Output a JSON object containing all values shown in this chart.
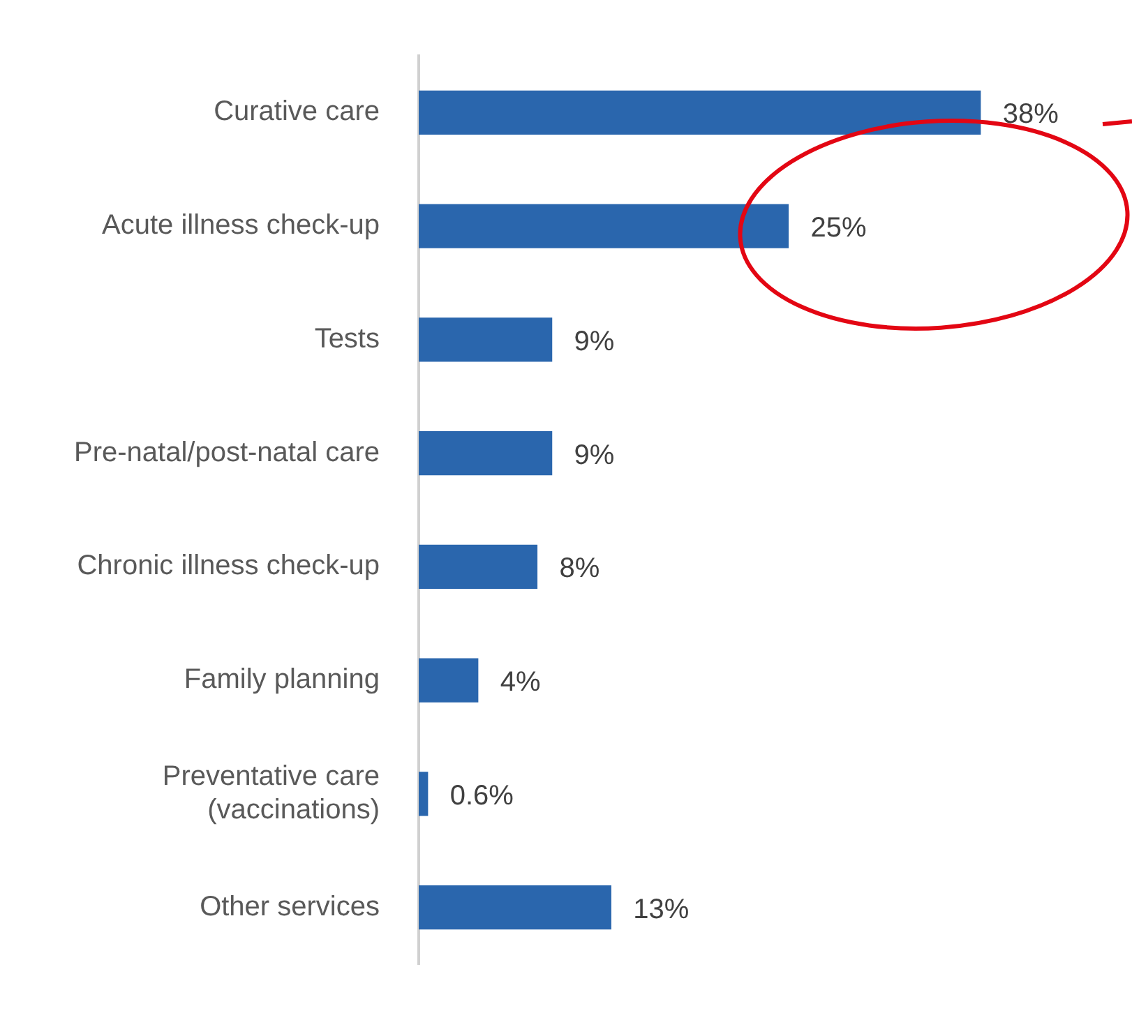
{
  "chart_data": {
    "type": "bar",
    "orientation": "horizontal",
    "categories": [
      "Curative care",
      "Acute illness check-up",
      "Tests",
      "Pre-natal/post-natal care",
      "Chronic illness check-up",
      "Family planning",
      "Preventative care (vaccinations)",
      "Other services"
    ],
    "values": [
      38,
      25,
      9,
      9,
      8,
      4,
      0.6,
      13
    ],
    "value_labels": [
      "38%",
      "25%",
      "9%",
      "9%",
      "8%",
      "4%",
      "0.6%",
      "13%"
    ],
    "color": "#2a66ad",
    "legend": false
  }
}
